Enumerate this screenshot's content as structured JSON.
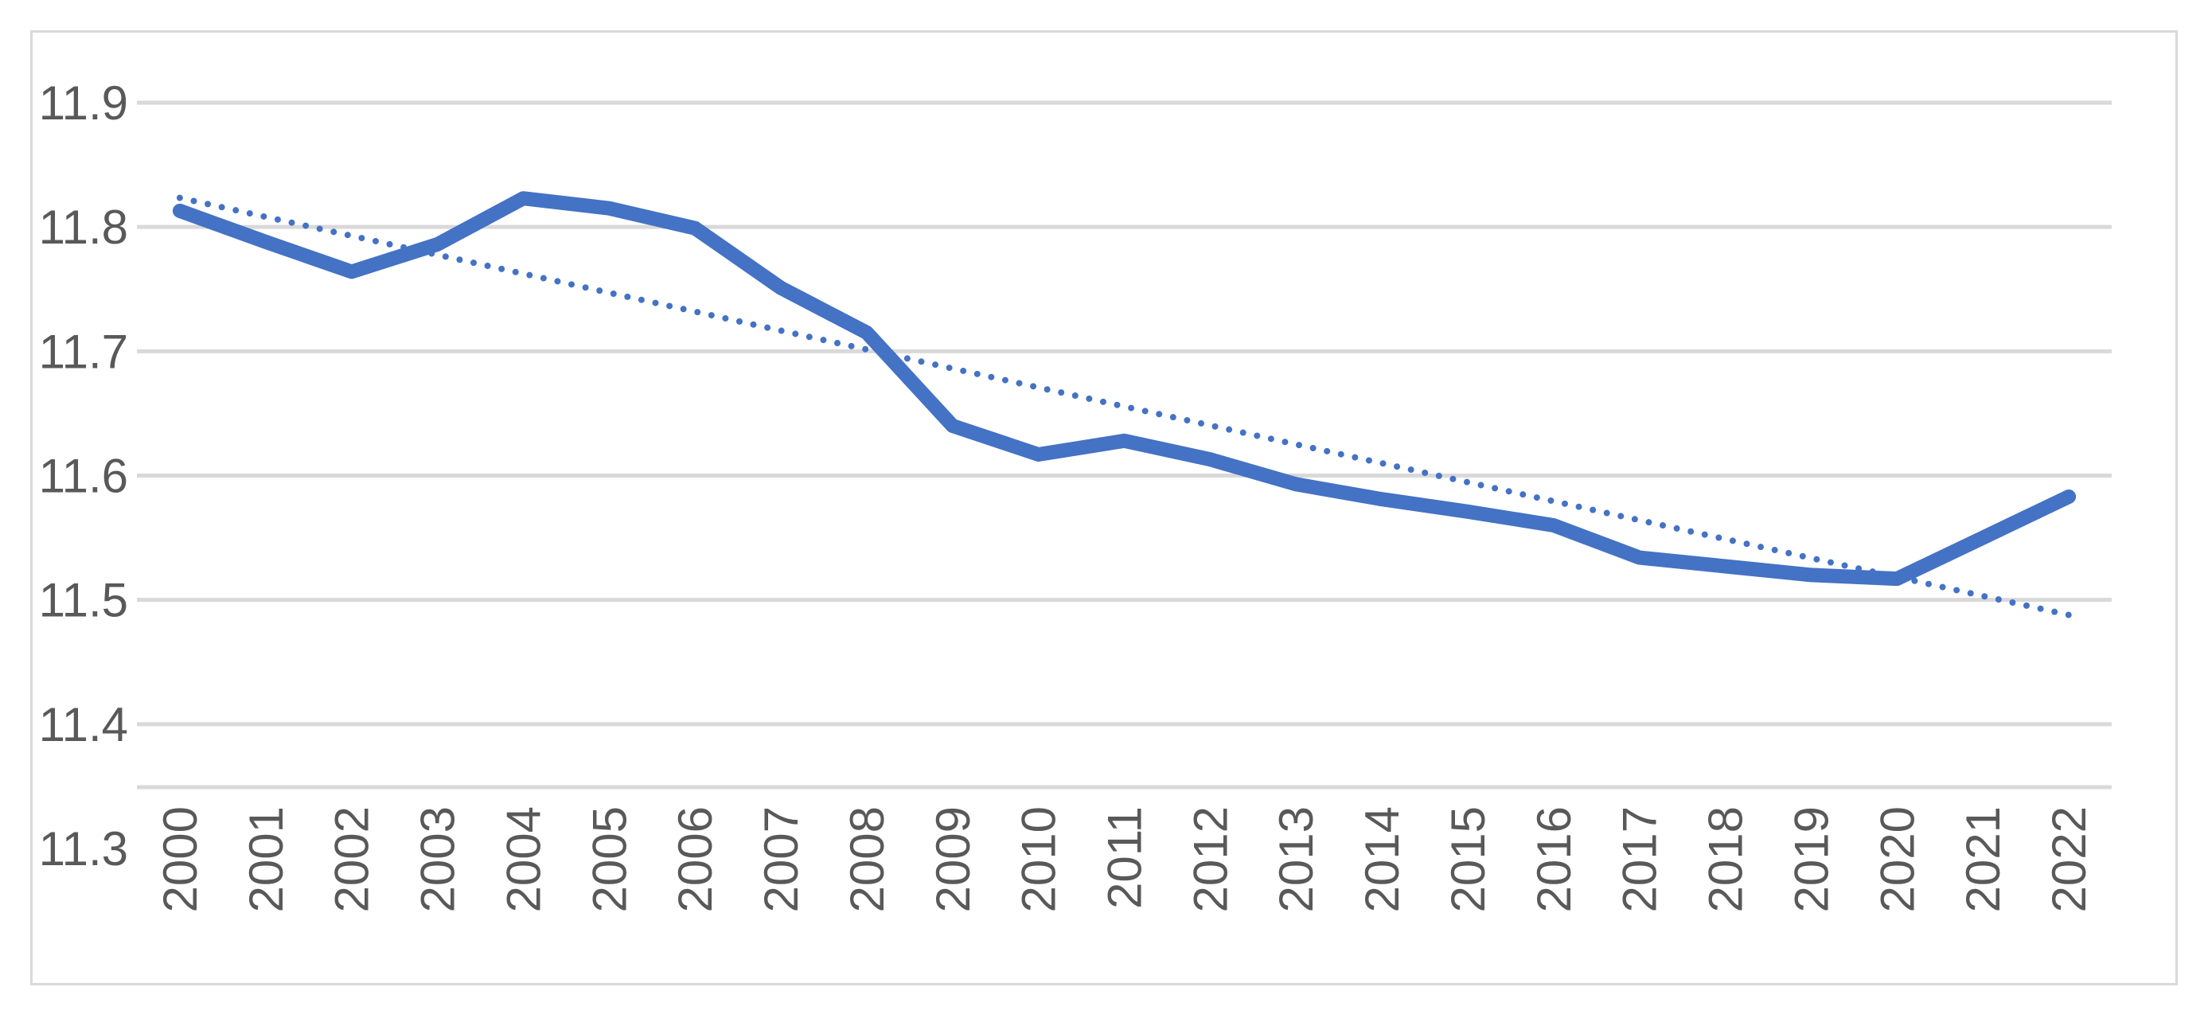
{
  "chart_data": {
    "type": "line",
    "title": "",
    "xlabel": "",
    "ylabel": "",
    "ylim": [
      11.3,
      11.9
    ],
    "yticks": [
      "11.3",
      "11.4",
      "11.5",
      "11.6",
      "11.7",
      "11.8",
      "11.9"
    ],
    "x": [
      "2000",
      "2001",
      "2002",
      "2003",
      "2004",
      "2005",
      "2006",
      "2007",
      "2008",
      "2009",
      "2010",
      "2011",
      "2012",
      "2013",
      "2014",
      "2015",
      "2016",
      "2017",
      "2018",
      "2019",
      "2020",
      "2021",
      "2022"
    ],
    "series": [
      {
        "values": [
          11.813,
          11.788,
          11.764,
          11.786,
          11.823,
          11.815,
          11.799,
          11.751,
          11.715,
          11.64,
          11.617,
          11.628,
          11.613,
          11.593,
          11.581,
          11.571,
          11.56,
          11.534,
          11.527,
          11.52,
          11.517,
          11.55,
          11.583
        ],
        "color": "#4472c4",
        "style": "solid"
      },
      {
        "values": [
          11.8234,
          11.8081,
          11.7929,
          11.7776,
          11.7624,
          11.7471,
          11.7319,
          11.7166,
          11.7014,
          11.6861,
          11.6709,
          11.6556,
          11.6404,
          11.6251,
          11.6099,
          11.5946,
          11.5794,
          11.5641,
          11.5489,
          11.5336,
          11.5184,
          11.5031,
          11.4879
        ],
        "color": "#4472c4",
        "style": "dotted"
      }
    ],
    "grid": true,
    "legend": "none"
  }
}
